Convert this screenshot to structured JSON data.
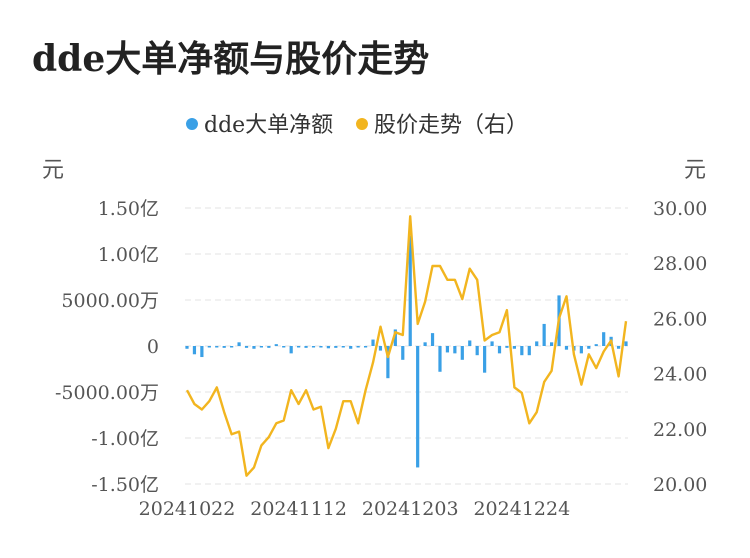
{
  "chart_data": {
    "type": "bar+line",
    "title": "dde大单净额与股价走势",
    "legend": {
      "placement": "top-center",
      "items": [
        {
          "name": "dde大单净额",
          "color": "#3aa0e6"
        },
        {
          "name": "股价走势（右）",
          "color": "#f2b51f"
        }
      ]
    },
    "left_unit": "元",
    "right_unit": "元",
    "y_left": {
      "min": -15000,
      "max": 15000,
      "unit": "万元",
      "ticks": [
        {
          "value": 15000,
          "label": "1.50亿"
        },
        {
          "value": 10000,
          "label": "1.00亿"
        },
        {
          "value": 5000,
          "label": "5000.00万"
        },
        {
          "value": 0,
          "label": "0"
        },
        {
          "value": -5000,
          "label": "-5000.00万"
        },
        {
          "value": -10000,
          "label": "-1.00亿"
        },
        {
          "value": -15000,
          "label": "-1.50亿"
        }
      ]
    },
    "y_right": {
      "min": 20,
      "max": 30,
      "ticks": [
        {
          "value": 30,
          "label": "30.00"
        },
        {
          "value": 28,
          "label": "28.00"
        },
        {
          "value": 26,
          "label": "26.00"
        },
        {
          "value": 24,
          "label": "24.00"
        },
        {
          "value": 22,
          "label": "22.00"
        },
        {
          "value": 20,
          "label": "20.00"
        }
      ]
    },
    "grid": true,
    "x_tick_labels": [
      {
        "index": 0,
        "label": "20241022"
      },
      {
        "index": 15,
        "label": "20241112"
      },
      {
        "index": 30,
        "label": "20241203"
      },
      {
        "index": 45,
        "label": "20241224"
      }
    ],
    "series": [
      {
        "name": "dde大单净额",
        "type": "bar",
        "values": [
          -300,
          -900,
          -1200,
          -150,
          -100,
          -200,
          -150,
          400,
          -200,
          -300,
          -100,
          -200,
          200,
          -100,
          -800,
          -100,
          -200,
          -100,
          -150,
          -250,
          -200,
          -100,
          -300,
          -150,
          -100,
          700,
          -500,
          -3500,
          1800,
          -1500,
          12000,
          -13200,
          400,
          1400,
          -2800,
          -700,
          -800,
          -1500,
          600,
          -1000,
          -2900,
          500,
          -800,
          -200,
          -300,
          -1000,
          -1000,
          500,
          2400,
          400,
          5500,
          -400,
          -500,
          -800,
          -300,
          200,
          1500,
          1000,
          -300,
          500
        ],
        "color": "#3aa0e6"
      },
      {
        "name": "股价走势（右）",
        "type": "line",
        "values": [
          23.4,
          22.9,
          22.7,
          23.0,
          23.5,
          22.6,
          21.8,
          21.9,
          20.3,
          20.6,
          21.4,
          21.7,
          22.2,
          22.3,
          23.4,
          22.9,
          23.4,
          22.7,
          22.8,
          21.3,
          22.0,
          23.0,
          23.0,
          22.2,
          23.4,
          24.4,
          25.7,
          24.6,
          25.5,
          25.4,
          29.7,
          25.8,
          26.6,
          27.9,
          27.9,
          27.4,
          27.4,
          26.7,
          27.8,
          27.4,
          25.2,
          25.4,
          25.5,
          26.3,
          23.5,
          23.3,
          22.2,
          22.6,
          23.7,
          24.1,
          26.0,
          26.8,
          24.7,
          23.6,
          24.7,
          24.2,
          24.8,
          25.2,
          23.9,
          25.9
        ],
        "color": "#f2b51f"
      }
    ]
  }
}
